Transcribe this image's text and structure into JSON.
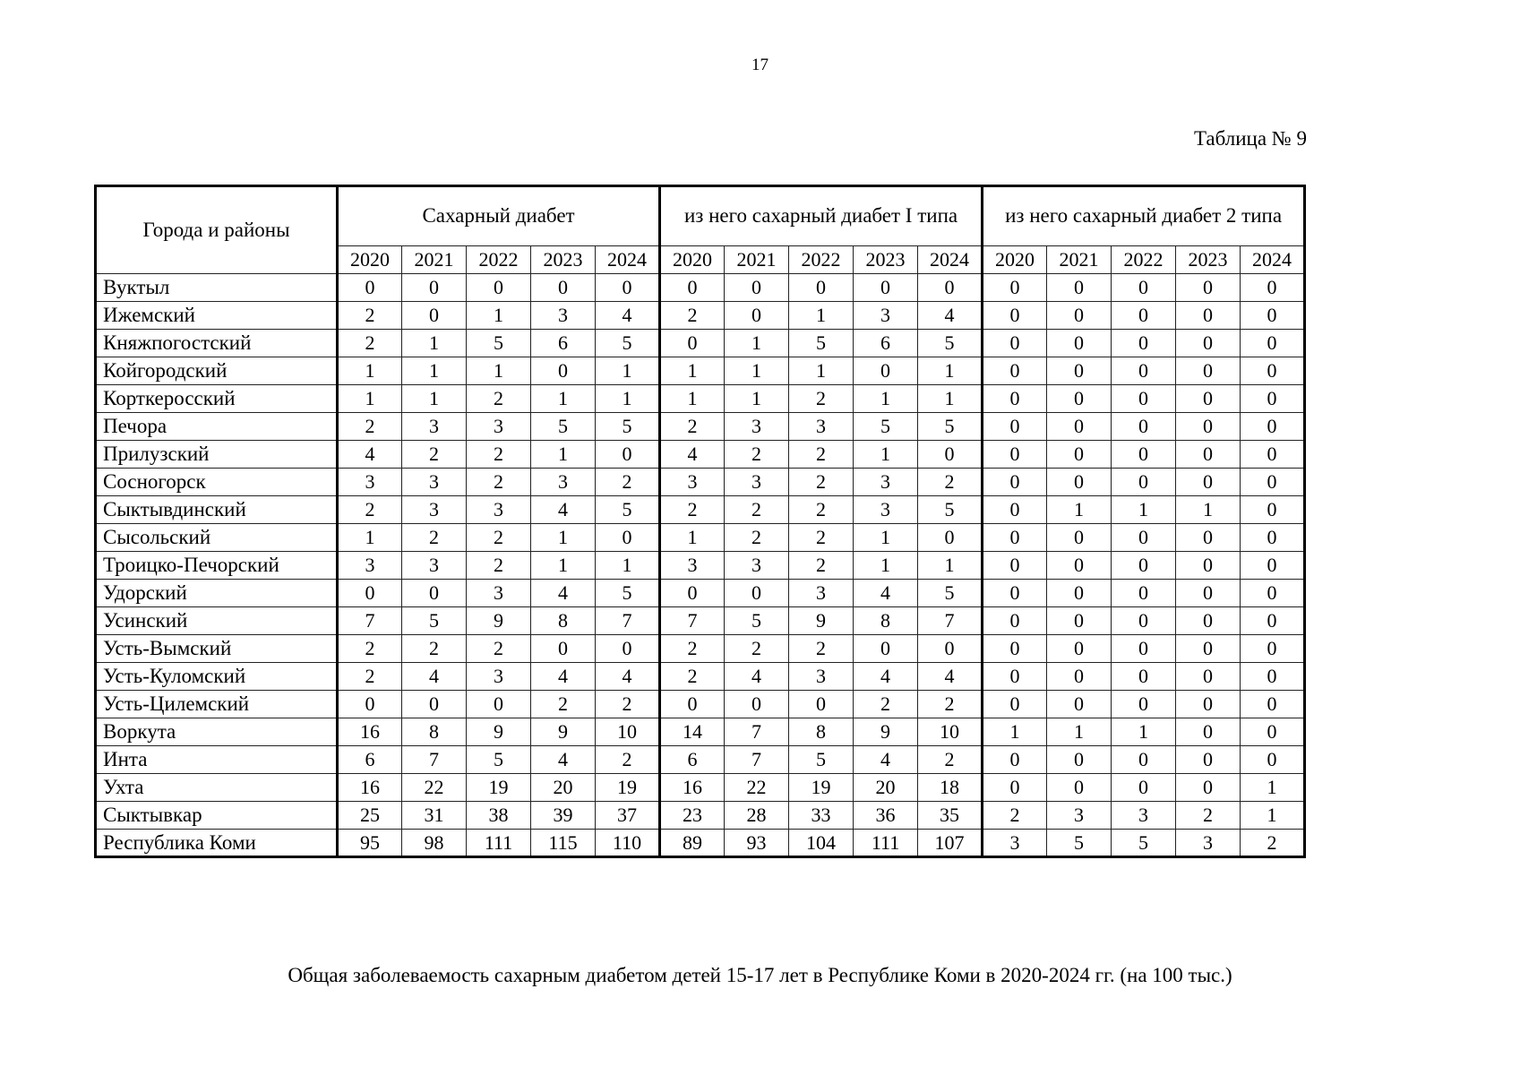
{
  "page": {
    "number": "17",
    "table_label": "Таблица № 9",
    "caption": "Общая заболеваемость сахарным диабетом детей 15-17 лет в Республике Коми в 2020-2024 гг. (на 100 тыс.)"
  },
  "table": {
    "row_header": "Города и районы",
    "groups": [
      {
        "label": "Сахарный диабет",
        "years": [
          "2020",
          "2021",
          "2022",
          "2023",
          "2024"
        ]
      },
      {
        "label": "из него сахарный диабет I типа",
        "years": [
          "2020",
          "2021",
          "2022",
          "2023",
          "2024"
        ]
      },
      {
        "label": "из него сахарный диабет 2 типа",
        "years": [
          "2020",
          "2021",
          "2022",
          "2023",
          "2024"
        ]
      }
    ],
    "rows": [
      {
        "name": "Вуктыл",
        "sd": [
          0,
          0,
          0,
          0,
          0
        ],
        "t1": [
          0,
          0,
          0,
          0,
          0
        ],
        "t2": [
          0,
          0,
          0,
          0,
          0
        ]
      },
      {
        "name": "Ижемский",
        "sd": [
          2,
          0,
          1,
          3,
          4
        ],
        "t1": [
          2,
          0,
          1,
          3,
          4
        ],
        "t2": [
          0,
          0,
          0,
          0,
          0
        ]
      },
      {
        "name": "Княжпогостский",
        "sd": [
          2,
          1,
          5,
          6,
          5
        ],
        "t1": [
          0,
          1,
          5,
          6,
          5
        ],
        "t2": [
          0,
          0,
          0,
          0,
          0
        ]
      },
      {
        "name": "Койгородский",
        "sd": [
          1,
          1,
          1,
          0,
          1
        ],
        "t1": [
          1,
          1,
          1,
          0,
          1
        ],
        "t2": [
          0,
          0,
          0,
          0,
          0
        ]
      },
      {
        "name": "Корткеросский",
        "sd": [
          1,
          1,
          2,
          1,
          1
        ],
        "t1": [
          1,
          1,
          2,
          1,
          1
        ],
        "t2": [
          0,
          0,
          0,
          0,
          0
        ]
      },
      {
        "name": "Печора",
        "sd": [
          2,
          3,
          3,
          5,
          5
        ],
        "t1": [
          2,
          3,
          3,
          5,
          5
        ],
        "t2": [
          0,
          0,
          0,
          0,
          0
        ]
      },
      {
        "name": "Прилузский",
        "sd": [
          4,
          2,
          2,
          1,
          0
        ],
        "t1": [
          4,
          2,
          2,
          1,
          0
        ],
        "t2": [
          0,
          0,
          0,
          0,
          0
        ]
      },
      {
        "name": "Сосногорск",
        "sd": [
          3,
          3,
          2,
          3,
          2
        ],
        "t1": [
          3,
          3,
          2,
          3,
          2
        ],
        "t2": [
          0,
          0,
          0,
          0,
          0
        ]
      },
      {
        "name": "Сыктывдинский",
        "sd": [
          2,
          3,
          3,
          4,
          5
        ],
        "t1": [
          2,
          2,
          2,
          3,
          5
        ],
        "t2": [
          0,
          1,
          1,
          1,
          0
        ]
      },
      {
        "name": "Сысольский",
        "sd": [
          1,
          2,
          2,
          1,
          0
        ],
        "t1": [
          1,
          2,
          2,
          1,
          0
        ],
        "t2": [
          0,
          0,
          0,
          0,
          0
        ]
      },
      {
        "name": "Троицко-Печорский",
        "sd": [
          3,
          3,
          2,
          1,
          1
        ],
        "t1": [
          3,
          3,
          2,
          1,
          1
        ],
        "t2": [
          0,
          0,
          0,
          0,
          0
        ]
      },
      {
        "name": "Удорский",
        "sd": [
          0,
          0,
          3,
          4,
          5
        ],
        "t1": [
          0,
          0,
          3,
          4,
          5
        ],
        "t2": [
          0,
          0,
          0,
          0,
          0
        ]
      },
      {
        "name": "Усинский",
        "sd": [
          7,
          5,
          9,
          8,
          7
        ],
        "t1": [
          7,
          5,
          9,
          8,
          7
        ],
        "t2": [
          0,
          0,
          0,
          0,
          0
        ]
      },
      {
        "name": "Усть-Вымский",
        "sd": [
          2,
          2,
          2,
          0,
          0
        ],
        "t1": [
          2,
          2,
          2,
          0,
          0
        ],
        "t2": [
          0,
          0,
          0,
          0,
          0
        ]
      },
      {
        "name": "Усть-Куломский",
        "sd": [
          2,
          4,
          3,
          4,
          4
        ],
        "t1": [
          2,
          4,
          3,
          4,
          4
        ],
        "t2": [
          0,
          0,
          0,
          0,
          0
        ]
      },
      {
        "name": "Усть-Цилемский",
        "sd": [
          0,
          0,
          0,
          2,
          2
        ],
        "t1": [
          0,
          0,
          0,
          2,
          2
        ],
        "t2": [
          0,
          0,
          0,
          0,
          0
        ]
      },
      {
        "name": "Воркута",
        "sd": [
          16,
          8,
          9,
          9,
          10
        ],
        "t1": [
          14,
          7,
          8,
          9,
          10
        ],
        "t2": [
          1,
          1,
          1,
          0,
          0
        ]
      },
      {
        "name": "Инта",
        "sd": [
          6,
          7,
          5,
          4,
          2
        ],
        "t1": [
          6,
          7,
          5,
          4,
          2
        ],
        "t2": [
          0,
          0,
          0,
          0,
          0
        ]
      },
      {
        "name": "Ухта",
        "sd": [
          16,
          22,
          19,
          20,
          19
        ],
        "t1": [
          16,
          22,
          19,
          20,
          18
        ],
        "t2": [
          0,
          0,
          0,
          0,
          1
        ]
      },
      {
        "name": "Сыктывкар",
        "sd": [
          25,
          31,
          38,
          39,
          37
        ],
        "t1": [
          23,
          28,
          33,
          36,
          35
        ],
        "t2": [
          2,
          3,
          3,
          2,
          1
        ]
      },
      {
        "name": "Республика Коми",
        "sd": [
          95,
          98,
          111,
          115,
          110
        ],
        "t1": [
          89,
          93,
          104,
          111,
          107
        ],
        "t2": [
          3,
          5,
          5,
          3,
          2
        ]
      }
    ]
  }
}
